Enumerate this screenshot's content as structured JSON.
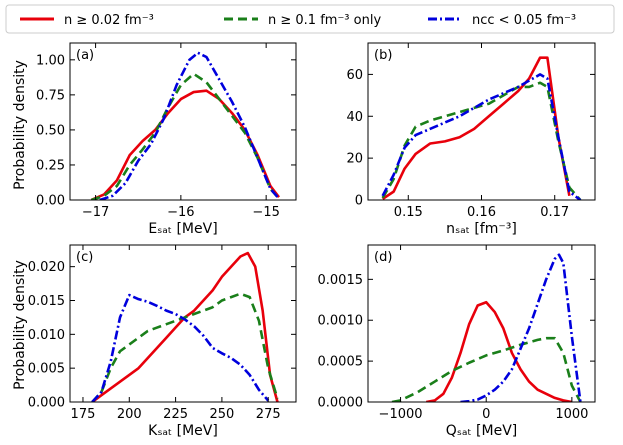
{
  "chart_data": {
    "type": "line",
    "ylabel": "Probability density",
    "legend": [
      {
        "label": "n ≥ 0.02 fm⁻³",
        "color": "#e8000b",
        "dash": "solid"
      },
      {
        "label": "n ≥ 0.1 fm⁻³ only",
        "color": "#1a7f1a",
        "dash": "dashed"
      },
      {
        "label": "nᴄᴄ < 0.05 fm⁻³",
        "color": "#0000dd",
        "dash": "dashdot"
      }
    ],
    "panels": [
      {
        "id": "a",
        "tag": "(a)",
        "xlabel": "Eₛₐₜ [MeV]",
        "xlim": [
          -17.3,
          -14.65
        ],
        "ylim": [
          0,
          1.12
        ],
        "xticks": [
          -17,
          -16,
          -15
        ],
        "xtick_labels": [
          "−17",
          "−16",
          "−15"
        ],
        "yticks": [
          0,
          0.25,
          0.5,
          0.75,
          1.0
        ],
        "ytick_labels": [
          "0.00",
          "0.25",
          "0.50",
          "0.75",
          "1.00"
        ],
        "series": [
          {
            "name": "red",
            "x": [
              -17.05,
              -16.9,
              -16.75,
              -16.6,
              -16.45,
              -16.3,
              -16.15,
              -16.0,
              -15.85,
              -15.7,
              -15.55,
              -15.4,
              -15.25,
              -15.1,
              -14.95,
              -14.85
            ],
            "y": [
              0.0,
              0.04,
              0.14,
              0.32,
              0.42,
              0.5,
              0.62,
              0.72,
              0.77,
              0.78,
              0.72,
              0.62,
              0.5,
              0.32,
              0.1,
              0.02
            ]
          },
          {
            "name": "green",
            "x": [
              -17.05,
              -16.9,
              -16.75,
              -16.6,
              -16.45,
              -16.3,
              -16.15,
              -16.0,
              -15.85,
              -15.7,
              -15.55,
              -15.4,
              -15.25,
              -15.1,
              -14.95,
              -14.85
            ],
            "y": [
              0.0,
              0.03,
              0.1,
              0.25,
              0.36,
              0.48,
              0.66,
              0.82,
              0.9,
              0.84,
              0.72,
              0.6,
              0.48,
              0.3,
              0.08,
              0.01
            ]
          },
          {
            "name": "blue",
            "x": [
              -16.95,
              -16.8,
              -16.65,
              -16.5,
              -16.35,
              -16.2,
              -16.05,
              -15.9,
              -15.8,
              -15.7,
              -15.55,
              -15.4,
              -15.25,
              -15.1,
              -14.95,
              -14.85
            ],
            "y": [
              0.0,
              0.03,
              0.12,
              0.28,
              0.4,
              0.58,
              0.82,
              1.0,
              1.05,
              1.02,
              0.86,
              0.7,
              0.52,
              0.3,
              0.08,
              0.01
            ]
          }
        ]
      },
      {
        "id": "b",
        "tag": "(b)",
        "xlabel": "nₛₐₜ [fm⁻³]",
        "xlim": [
          0.1445,
          0.1755
        ],
        "ylim": [
          0,
          75
        ],
        "xticks": [
          0.15,
          0.16,
          0.17
        ],
        "xtick_labels": [
          "0.15",
          "0.16",
          "0.17"
        ],
        "yticks": [
          0,
          20,
          40,
          60
        ],
        "ytick_labels": [
          "0",
          "20",
          "40",
          "60"
        ],
        "series": [
          {
            "name": "red",
            "x": [
              0.1465,
              0.148,
              0.1495,
              0.151,
              0.153,
              0.155,
              0.157,
              0.159,
              0.161,
              0.163,
              0.165,
              0.1665,
              0.168,
              0.169,
              0.1705,
              0.172
            ],
            "y": [
              0.5,
              4,
              15,
              22,
              27,
              28,
              30,
              34,
              40,
              46,
              52,
              58,
              68,
              68,
              30,
              2
            ]
          },
          {
            "name": "green",
            "x": [
              0.1465,
              0.148,
              0.1495,
              0.151,
              0.153,
              0.155,
              0.157,
              0.159,
              0.161,
              0.163,
              0.165,
              0.1665,
              0.168,
              0.169,
              0.1705,
              0.172,
              0.1735
            ],
            "y": [
              1,
              10,
              26,
              35,
              38,
              40,
              42,
              44,
              46,
              50,
              54,
              54,
              56,
              54,
              28,
              6,
              0
            ]
          },
          {
            "name": "blue",
            "x": [
              0.1465,
              0.148,
              0.1495,
              0.151,
              0.153,
              0.155,
              0.157,
              0.159,
              0.161,
              0.163,
              0.165,
              0.1665,
              0.168,
              0.169,
              0.1705,
              0.172,
              0.1735
            ],
            "y": [
              2,
              12,
              25,
              31,
              34,
              37,
              40,
              44,
              48,
              51,
              54,
              57,
              60,
              58,
              30,
              4,
              0
            ]
          }
        ]
      },
      {
        "id": "c",
        "tag": "(c)",
        "xlabel": "Kₛₐₜ [MeV]",
        "xlim": [
          168,
          290
        ],
        "ylim": [
          0,
          0.0232
        ],
        "xticks": [
          175,
          200,
          225,
          250,
          275
        ],
        "xtick_labels": [
          "175",
          "200",
          "225",
          "250",
          "275"
        ],
        "yticks": [
          0,
          0.005,
          0.01,
          0.015,
          0.02
        ],
        "ytick_labels": [
          "0.000",
          "0.005",
          "0.010",
          "0.015",
          "0.020"
        ],
        "series": [
          {
            "name": "red",
            "x": [
              180,
              185,
              190,
              195,
              200,
              205,
              210,
              215,
              220,
              225,
              230,
              235,
              240,
              245,
              250,
              255,
              260,
              264,
              268,
              272,
              276,
              280
            ],
            "y": [
              0.0,
              0.001,
              0.002,
              0.003,
              0.004,
              0.005,
              0.0065,
              0.008,
              0.0095,
              0.011,
              0.0125,
              0.0135,
              0.015,
              0.0165,
              0.0185,
              0.02,
              0.0215,
              0.022,
              0.02,
              0.0135,
              0.004,
              0.0
            ]
          },
          {
            "name": "green",
            "x": [
              180,
              185,
              190,
              195,
              200,
              205,
              210,
              215,
              220,
              225,
              230,
              235,
              240,
              245,
              250,
              255,
              260,
              265,
              270,
              275,
              280
            ],
            "y": [
              0.0,
              0.0015,
              0.005,
              0.0075,
              0.0085,
              0.0095,
              0.0105,
              0.011,
              0.0115,
              0.012,
              0.0125,
              0.013,
              0.0135,
              0.014,
              0.015,
              0.0155,
              0.016,
              0.0155,
              0.012,
              0.005,
              0.0005
            ]
          },
          {
            "name": "blue",
            "x": [
              180,
              185,
              190,
              195,
              200,
              205,
              210,
              215,
              220,
              225,
              230,
              235,
              240,
              245,
              250,
              255,
              260,
              265,
              270,
              275
            ],
            "y": [
              0.0,
              0.0015,
              0.006,
              0.0125,
              0.0158,
              0.0152,
              0.0148,
              0.0142,
              0.0135,
              0.013,
              0.0122,
              0.0112,
              0.0098,
              0.008,
              0.0072,
              0.0065,
              0.0055,
              0.004,
              0.0018,
              0.0002
            ]
          }
        ]
      },
      {
        "id": "d",
        "tag": "(d)",
        "xlabel": "Qₛₐₜ [MeV]",
        "xlim": [
          -1380,
          1270
        ],
        "ylim": [
          0,
          0.00192
        ],
        "xticks": [
          -1000,
          0,
          1000
        ],
        "xtick_labels": [
          "−1000",
          "0",
          "1000"
        ],
        "yticks": [
          0,
          0.0005,
          0.001,
          0.0015
        ],
        "ytick_labels": [
          "0.0000",
          "0.0005",
          "0.0010",
          "0.0015"
        ],
        "series": [
          {
            "name": "red",
            "x": [
              -700,
              -600,
              -500,
              -400,
              -300,
              -200,
              -100,
              0,
              100,
              200,
              300,
              400,
              500,
              600,
              700,
              800,
              900,
              1000
            ],
            "y": [
              0.0,
              2e-05,
              0.0001,
              0.0003,
              0.0006,
              0.00095,
              0.00118,
              0.00122,
              0.0011,
              0.0009,
              0.0006,
              0.0004,
              0.00025,
              0.00015,
              0.0001,
              5e-05,
              2e-05,
              0.0
            ]
          },
          {
            "name": "green",
            "x": [
              -1100,
              -1000,
              -800,
              -600,
              -400,
              -200,
              0,
              200,
              400,
              500,
              600,
              700,
              800,
              900,
              1000,
              1100
            ],
            "y": [
              0.0,
              2e-05,
              0.00012,
              0.00025,
              0.00038,
              0.00048,
              0.00057,
              0.00063,
              0.0007,
              0.00073,
              0.00076,
              0.00078,
              0.00078,
              0.0006,
              0.0002,
              0.0
            ]
          },
          {
            "name": "blue",
            "x": [
              -300,
              -200,
              -100,
              0,
              100,
              200,
              300,
              400,
              500,
              600,
              700,
              800,
              850,
              900,
              1000,
              1100
            ],
            "y": [
              0.0,
              1e-05,
              3e-05,
              8e-05,
              0.00015,
              0.00025,
              0.0004,
              0.00065,
              0.0009,
              0.0012,
              0.0015,
              0.00175,
              0.0018,
              0.0017,
              0.0008,
              0.0
            ]
          }
        ]
      }
    ]
  }
}
